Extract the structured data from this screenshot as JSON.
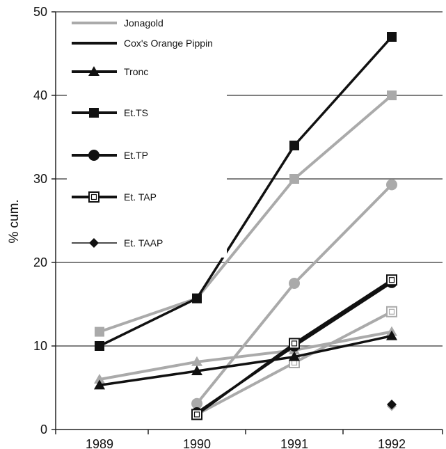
{
  "chart_data": {
    "type": "line",
    "title": "",
    "xlabel": "",
    "ylabel": "% cum.",
    "ylim": [
      0,
      50
    ],
    "yticks": [
      0,
      10,
      20,
      30,
      40,
      50
    ],
    "categories": [
      "1989",
      "1990",
      "1991",
      "1992"
    ],
    "grid": "horizontal",
    "legend_position": "top-left",
    "series": [
      {
        "name": "Jonagold",
        "color": "#aaaaaa",
        "marker": "none",
        "values": [
          null,
          null,
          null,
          null
        ]
      },
      {
        "name": "Cox's Orange Pippin",
        "color": "#111111",
        "marker": "none",
        "values": [
          null,
          null,
          null,
          null
        ]
      },
      {
        "name": "Tronc",
        "color": "#111111",
        "marker": "triangle",
        "values": [
          5.3,
          7.0,
          8.7,
          11.2
        ],
        "twin": {
          "color": "#aaaaaa",
          "values": [
            6.0,
            8.1,
            9.5,
            11.7
          ]
        }
      },
      {
        "name": "Et.TS",
        "color": "#111111",
        "marker": "square",
        "values": [
          10.0,
          15.7,
          34.0,
          47.0
        ],
        "twin": {
          "color": "#aaaaaa",
          "values": [
            11.7,
            15.7,
            30.0,
            40.0
          ]
        }
      },
      {
        "name": "Et.TP",
        "color": "#111111",
        "marker": "circle",
        "values": [
          null,
          2.0,
          10.0,
          17.6
        ],
        "twin": {
          "color": "#aaaaaa",
          "values": [
            null,
            3.1,
            17.5,
            29.3
          ]
        }
      },
      {
        "name": "Et. TAP",
        "color": "#111111",
        "marker": "open-square",
        "values": [
          null,
          1.8,
          10.3,
          17.9
        ],
        "twin": {
          "color": "#aaaaaa",
          "values": [
            null,
            1.8,
            8.0,
            14.1
          ]
        }
      },
      {
        "name": "Et. TAAP",
        "color": "#111111",
        "marker": "diamond",
        "values": [
          null,
          null,
          null,
          3.0
        ],
        "twin": {
          "color": "#aaaaaa",
          "values": [
            null,
            null,
            null,
            2.8
          ]
        }
      }
    ]
  }
}
